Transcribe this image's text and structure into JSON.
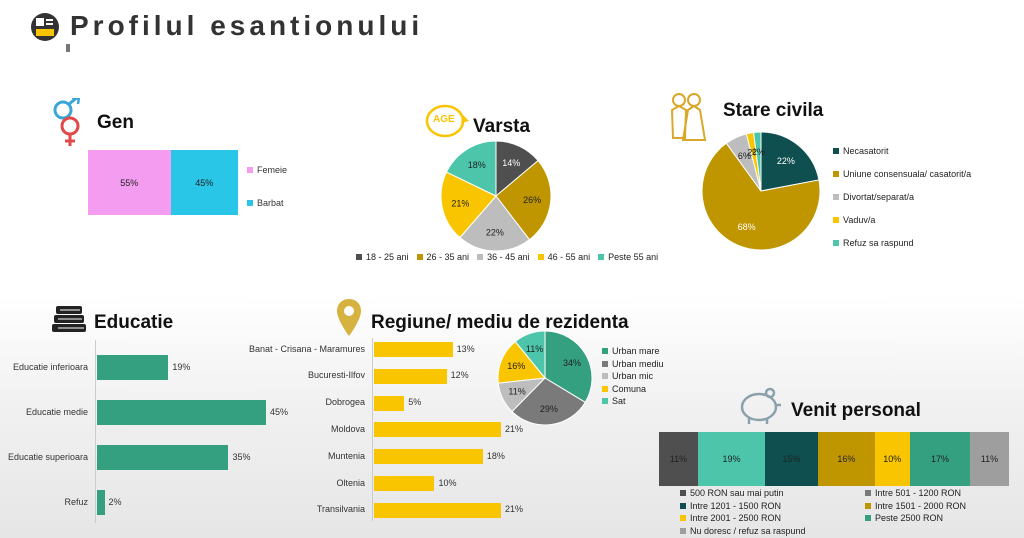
{
  "page": {
    "title": "Profilul esantionului"
  },
  "gen": {
    "title": "Gen",
    "chart_data": {
      "type": "bar",
      "stacked": true,
      "orientation": "horizontal",
      "series": [
        {
          "name": "Femeie",
          "values": [
            55
          ],
          "label": "55%",
          "color": "#f39cf0"
        },
        {
          "name": "Barbat",
          "values": [
            45
          ],
          "label": "45%",
          "color": "#29c6e8"
        }
      ]
    }
  },
  "varsta": {
    "title": "Varsta",
    "icon_label": "AGE",
    "chart_data": {
      "type": "pie",
      "slices": [
        {
          "label": "18 - 25 ani",
          "value": 14,
          "text": "14%",
          "color": "#4f4f4f"
        },
        {
          "label": "26 - 35 ani",
          "value": 26,
          "text": "26%",
          "color": "#bf9600"
        },
        {
          "label": "36 - 45 ani",
          "value": 22,
          "text": "22%",
          "color": "#bdbdbd"
        },
        {
          "label": "46 - 55 ani",
          "value": 21,
          "text": "21%",
          "color": "#f9c500"
        },
        {
          "label": "Peste 55 ani",
          "value": 18,
          "text": "18%",
          "color": "#4cc5aa"
        }
      ]
    }
  },
  "stare": {
    "title": "Stare civila",
    "chart_data": {
      "type": "pie",
      "slices": [
        {
          "label": "Necasatorit",
          "value": 22,
          "text": "22%",
          "color": "#0f4f4f"
        },
        {
          "label": "Uniune consensuala/ casatorit/a",
          "value": 68,
          "text": "68%",
          "color": "#bf9600"
        },
        {
          "label": "Divortat/separat/a",
          "value": 6,
          "text": "6%",
          "color": "#bdbdbd"
        },
        {
          "label": "Vaduv/a",
          "value": 2,
          "text": "2%",
          "color": "#f9c500"
        },
        {
          "label": "Refuz sa raspund",
          "value": 2,
          "text": "2%",
          "color": "#4cc5aa"
        }
      ]
    }
  },
  "educatie": {
    "title": "Educatie",
    "chart_data": {
      "type": "bar",
      "orientation": "horizontal",
      "color": "#35a07f",
      "categories": [
        "Educatie inferioara",
        "Educatie medie",
        "Educatie superioara",
        "Refuz"
      ],
      "values": [
        19,
        45,
        35,
        2
      ],
      "labels": [
        "19%",
        "45%",
        "35%",
        "2%"
      ]
    }
  },
  "regiune": {
    "title": "Regiune/ mediu de rezidenta",
    "chart_data": [
      {
        "type": "bar",
        "orientation": "horizontal",
        "color": "#f9c500",
        "categories": [
          "Banat - Crisana - Maramures",
          "Bucuresti-Ilfov",
          "Dobrogea",
          "Moldova",
          "Muntenia",
          "Oltenia",
          "Transilvania"
        ],
        "values": [
          13,
          12,
          5,
          21,
          18,
          10,
          21
        ],
        "labels": [
          "13%",
          "12%",
          "5%",
          "21%",
          "18%",
          "10%",
          "21%"
        ]
      },
      {
        "type": "pie",
        "slices": [
          {
            "label": "Urban mare",
            "value": 34,
            "text": "34%",
            "color": "#35a07f"
          },
          {
            "label": "Urban mediu",
            "value": 29,
            "text": "29%",
            "color": "#7a7a7a"
          },
          {
            "label": "Urban mic",
            "value": 11,
            "text": "11%",
            "color": "#bdbdbd"
          },
          {
            "label": "Comuna",
            "value": 16,
            "text": "16%",
            "color": "#f9c500"
          },
          {
            "label": "Sat",
            "value": 11,
            "text": "11%",
            "color": "#4cc5aa"
          }
        ]
      }
    ]
  },
  "venit": {
    "title": "Venit personal",
    "chart_data": {
      "type": "bar",
      "stacked": true,
      "orientation": "horizontal",
      "series": [
        {
          "name": "500 RON sau mai putin",
          "values": [
            11
          ],
          "label": "11%",
          "color": "#4f4f4f"
        },
        {
          "name": "Intre 501 - 1200 RON",
          "values": [
            19
          ],
          "label": "19%",
          "color": "#4cc5aa"
        },
        {
          "name": "Intre 1201 - 1500 RON",
          "values": [
            15
          ],
          "label": "15%",
          "color": "#0f4f4f"
        },
        {
          "name": "Intre 1501 - 2000 RON",
          "values": [
            16
          ],
          "label": "16%",
          "color": "#bf9600"
        },
        {
          "name": "Intre 2001 - 2500 RON",
          "values": [
            10
          ],
          "label": "10%",
          "color": "#f9c500"
        },
        {
          "name": "Peste 2500 RON",
          "values": [
            17
          ],
          "label": "17%",
          "color": "#35a07f"
        },
        {
          "name": "Nu doresc / refuz sa raspund",
          "values": [
            11
          ],
          "label": "11%",
          "color": "#9e9e9e"
        }
      ],
      "legend_colors": [
        "#4f4f4f",
        "#7a7a7a",
        "#0f4f4f",
        "#bf9600",
        "#f9c500",
        "#35a07f",
        "#9e9e9e"
      ]
    }
  }
}
